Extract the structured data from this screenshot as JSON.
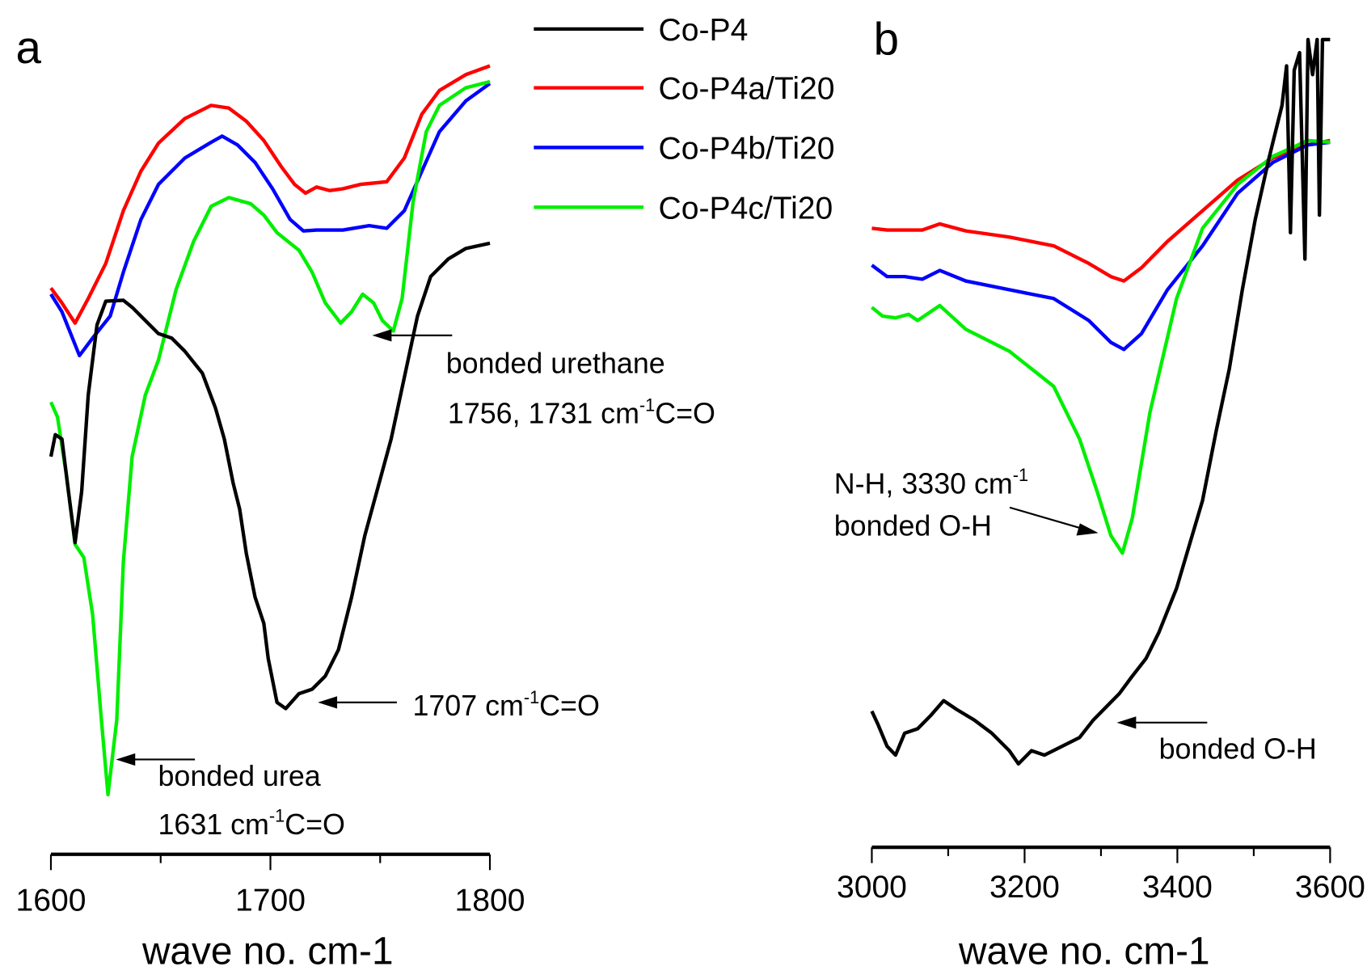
{
  "chart_data": [
    {
      "type": "line",
      "panel_label": "a",
      "xlabel": "wave no. cm-1",
      "ylabel": "",
      "xlim": [
        1600,
        1800
      ],
      "ylim": [
        0,
        93.5
      ],
      "y_units": "arbitrary (no y axis printed)",
      "xticks": [
        "1600",
        "1700",
        "1800"
      ],
      "grid": false,
      "series": [
        {
          "name": "Co-P4",
          "color": "#000000",
          "x": [
            1600,
            1602,
            1605,
            1608,
            1611,
            1614,
            1617,
            1621,
            1625,
            1633,
            1637,
            1643,
            1649,
            1655,
            1661,
            1669,
            1675,
            1679,
            1683,
            1686,
            1689,
            1693,
            1697,
            1699,
            1703,
            1707,
            1713,
            1719,
            1725,
            1731,
            1737,
            1743,
            1749,
            1755,
            1761,
            1767,
            1773,
            1781,
            1789,
            1800
          ],
          "y": [
            45.3,
            47.8,
            47.3,
            41.3,
            35.5,
            41.3,
            52.3,
            60.3,
            63,
            63.1,
            62.3,
            60.8,
            59.3,
            58.8,
            57.3,
            54.8,
            50.8,
            47.3,
            42.3,
            39.3,
            34.3,
            29.3,
            26.3,
            22.3,
            17.3,
            16.6,
            18.3,
            18.8,
            20.3,
            23.3,
            29.3,
            36.3,
            41.8,
            47.3,
            54.3,
            61.3,
            65.8,
            67.8,
            69,
            69.6
          ]
        },
        {
          "name": "Co-P4a/Ti20",
          "color": "#ff0000",
          "x": [
            1600,
            1605,
            1611,
            1617,
            1625,
            1633,
            1641,
            1649,
            1661,
            1673,
            1681,
            1689,
            1697,
            1705,
            1711,
            1716,
            1721,
            1727,
            1733,
            1741,
            1753,
            1761,
            1769,
            1777,
            1789,
            1800
          ],
          "y": [
            64.5,
            62.8,
            60.5,
            63.3,
            67.3,
            73.3,
            77.8,
            81,
            83.8,
            85.3,
            85,
            83.5,
            81.3,
            78.3,
            76.3,
            75.3,
            76,
            75.6,
            75.8,
            76.3,
            76.6,
            79.3,
            84.3,
            87,
            88.8,
            89.8
          ]
        },
        {
          "name": "Co-P4b/Ti20",
          "color": "#0000ff",
          "x": [
            1600,
            1605,
            1613,
            1619,
            1627,
            1633,
            1641,
            1649,
            1661,
            1673,
            1678,
            1685,
            1693,
            1701,
            1709,
            1715,
            1721,
            1733,
            1745,
            1753,
            1761,
            1769,
            1777,
            1789,
            1800
          ],
          "y": [
            63.8,
            61.8,
            56.8,
            58.8,
            61.3,
            66.3,
            72.3,
            76.3,
            79.3,
            81.1,
            81.8,
            80.8,
            78.8,
            75.8,
            72.3,
            71,
            71.1,
            71.1,
            71.6,
            71.3,
            73.3,
            77.8,
            82.3,
            85.8,
            87.8
          ]
        },
        {
          "name": "Co-P4c/Ti20",
          "color": "#00ee00",
          "x": [
            1600,
            1603,
            1607,
            1611,
            1615,
            1619,
            1623,
            1626,
            1630,
            1633,
            1637,
            1643,
            1649,
            1657,
            1665,
            1673,
            1681,
            1691,
            1697,
            1703,
            1713,
            1719,
            1725,
            1732,
            1737,
            1742,
            1747,
            1751,
            1756,
            1760,
            1765,
            1771,
            1777,
            1789,
            1800
          ],
          "y": [
            51.5,
            49.8,
            43.3,
            35.3,
            33.8,
            27.3,
            15.3,
            6.8,
            15.3,
            33.3,
            45.3,
            52.3,
            56.3,
            64.3,
            69.8,
            73.8,
            74.8,
            74.1,
            72.8,
            70.8,
            68.8,
            66.3,
            62.8,
            60.5,
            61.8,
            63.8,
            62.8,
            60.8,
            59.6,
            63.3,
            74.3,
            82.3,
            85.3,
            87.3,
            88
          ]
        }
      ],
      "annotations": [
        {
          "lines": [
            {
              "text": "bonded urethane"
            },
            {
              "pre": "1756, 1731 cm",
              "sup": "-1",
              "post": "C=O"
            }
          ],
          "arrow_to": [
            1746,
            60.3
          ]
        },
        {
          "lines": [
            {
              "pre": "1707 cm",
              "sup": "-1",
              "post": "C=O"
            }
          ],
          "arrow_to": [
            1722,
            17.3
          ]
        },
        {
          "lines": [
            {
              "text": "bonded urea"
            },
            {
              "pre": "1631 cm",
              "sup": "-1",
              "post": "C=O"
            }
          ],
          "arrow_to": [
            1630,
            10.8
          ]
        }
      ]
    },
    {
      "type": "line",
      "panel_label": "b",
      "xlabel": "wave no. cm-1",
      "ylabel": "",
      "xlim": [
        3000,
        3600
      ],
      "ylim": [
        0,
        93
      ],
      "y_units": "arbitrary (no y axis printed)",
      "xticks": [
        "3000",
        "3200",
        "3400",
        "3600"
      ],
      "grid": false,
      "series": [
        {
          "name": "Co-P4",
          "color": "#000000",
          "x": [
            3000,
            3008,
            3020,
            3031,
            3043,
            3060,
            3077,
            3094,
            3111,
            3134,
            3157,
            3180,
            3192,
            3209,
            3226,
            3249,
            3272,
            3290,
            3307,
            3324,
            3341,
            3359,
            3376,
            3399,
            3416,
            3433,
            3451,
            3468,
            3485,
            3502,
            3520,
            3537,
            3543,
            3548,
            3553,
            3560,
            3567,
            3571,
            3577,
            3583,
            3586,
            3590,
            3600
          ],
          "y": [
            15.5,
            14,
            11.5,
            10.5,
            13,
            13.5,
            15,
            16.7,
            15.7,
            14.5,
            13,
            11,
            9.5,
            11,
            10.5,
            11.5,
            12.5,
            14.5,
            16,
            17.5,
            19.5,
            21.5,
            24.5,
            29.5,
            34.5,
            39.5,
            47.5,
            54.5,
            63.5,
            71.5,
            78.5,
            84.5,
            89,
            70,
            88.5,
            90.5,
            67,
            92,
            88,
            92,
            72,
            92,
            92
          ]
        },
        {
          "name": "Co-P4a/Ti20",
          "color": "#ff0000",
          "x": [
            3000,
            3020,
            3043,
            3066,
            3089,
            3123,
            3180,
            3238,
            3284,
            3313,
            3330,
            3353,
            3387,
            3433,
            3479,
            3525,
            3571,
            3600
          ],
          "y": [
            70.5,
            70.3,
            70.3,
            70.3,
            71,
            70.2,
            69.5,
            68.5,
            66.5,
            65,
            64.5,
            66,
            69,
            72.5,
            76,
            78.5,
            80,
            80.5
          ]
        },
        {
          "name": "Co-P4b/Ti20",
          "color": "#0000ff",
          "x": [
            3000,
            3020,
            3043,
            3066,
            3089,
            3123,
            3180,
            3238,
            3284,
            3313,
            3330,
            3353,
            3387,
            3433,
            3479,
            3525,
            3571,
            3600
          ],
          "y": [
            66.3,
            65,
            65,
            64.7,
            65.7,
            64.5,
            63.5,
            62.5,
            60,
            57.5,
            56.7,
            58.5,
            63.5,
            68.5,
            74.5,
            78,
            80,
            80.3
          ]
        },
        {
          "name": "Co-P4c/Ti20",
          "color": "#00ee00",
          "x": [
            3000,
            3014,
            3031,
            3048,
            3060,
            3089,
            3123,
            3180,
            3238,
            3272,
            3295,
            3313,
            3328,
            3341,
            3364,
            3399,
            3433,
            3479,
            3525,
            3571,
            3600
          ],
          "y": [
            61.5,
            60.5,
            60.3,
            60.7,
            60,
            61.7,
            59,
            56.5,
            52.5,
            46.5,
            40.5,
            35.5,
            33.5,
            37.5,
            49.5,
            62.5,
            70.5,
            75.5,
            78.7,
            80.5,
            80.3
          ]
        }
      ],
      "annotations": [
        {
          "lines": [
            {
              "pre": "N-H, 3330 cm",
              "sup": "-1",
              "post": ""
            },
            {
              "text": "bonded O-H"
            }
          ],
          "arrow_to": [
            3296,
            35.8
          ]
        },
        {
          "lines": [
            {
              "text": "bonded O-H"
            }
          ],
          "arrow_to": [
            3321,
            14.2
          ]
        }
      ]
    }
  ],
  "legend": {
    "placement": "top-center",
    "entries": [
      "Co-P4",
      "Co-P4a/Ti20",
      "Co-P4b/Ti20",
      "Co-P4c/Ti20"
    ]
  }
}
